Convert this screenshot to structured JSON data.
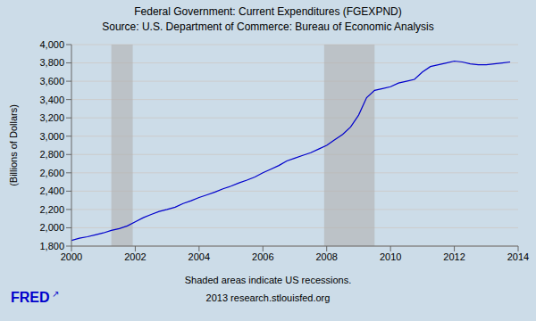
{
  "chart_data": {
    "type": "line",
    "title": "Federal Government: Current Expenditures (FGEXPND)",
    "subtitle": "Source: U.S. Department of Commerce: Bureau of Economic Analysis",
    "y_label": "(Billions of Dollars)",
    "annotations": [
      "Shaded areas indicate US recessions.",
      "2013 research.stlouisfed.org"
    ],
    "logo": [
      "FRED",
      "↗"
    ],
    "color": "#0000cc",
    "grid": true,
    "recessions": [
      {
        "start": 2001.25,
        "end": 2001.92,
        "color": "#b0b0b0"
      },
      {
        "start": 2007.92,
        "end": 2009.5,
        "color": "#b0b0b0"
      }
    ],
    "xlim": [
      2000,
      2014
    ],
    "xticks": [
      2000,
      2002,
      2004,
      2006,
      2008,
      2010,
      2012,
      2014
    ],
    "ylim": [
      1800,
      4000
    ],
    "yticks": [
      {
        "value": 1800,
        "label": "1,800"
      },
      {
        "value": 2000,
        "label": "2,000"
      },
      {
        "value": 2200,
        "label": "2,200"
      },
      {
        "value": 2400,
        "label": "2,400"
      },
      {
        "value": 2600,
        "label": "2,600"
      },
      {
        "value": 2800,
        "label": "2,800"
      },
      {
        "value": 3000,
        "label": "3,000"
      },
      {
        "value": 3200,
        "label": "3,200"
      },
      {
        "value": 3400,
        "label": "3,400"
      },
      {
        "value": 3600,
        "label": "3,600"
      },
      {
        "value": 3800,
        "label": "3,800"
      },
      {
        "value": 4000,
        "label": "4,000"
      }
    ],
    "x": [
      2000.0,
      2000.25,
      2000.5,
      2000.75,
      2001.0,
      2001.25,
      2001.5,
      2001.75,
      2002.0,
      2002.25,
      2002.5,
      2002.75,
      2003.0,
      2003.25,
      2003.5,
      2003.75,
      2004.0,
      2004.25,
      2004.5,
      2004.75,
      2005.0,
      2005.25,
      2005.5,
      2005.75,
      2006.0,
      2006.25,
      2006.5,
      2006.75,
      2007.0,
      2007.25,
      2007.5,
      2007.75,
      2008.0,
      2008.25,
      2008.5,
      2008.75,
      2009.0,
      2009.25,
      2009.5,
      2009.75,
      2010.0,
      2010.25,
      2010.5,
      2010.75,
      2011.0,
      2011.25,
      2011.5,
      2011.75,
      2012.0,
      2012.25,
      2012.5,
      2012.75,
      2013.0,
      2013.25,
      2013.5,
      2013.75
    ],
    "values": [
      1862,
      1886,
      1902,
      1923,
      1944,
      1971,
      1991,
      2020,
      2065,
      2110,
      2145,
      2178,
      2200,
      2225,
      2265,
      2295,
      2330,
      2360,
      2390,
      2425,
      2455,
      2490,
      2520,
      2555,
      2600,
      2640,
      2680,
      2730,
      2760,
      2790,
      2820,
      2860,
      2900,
      2960,
      3020,
      3100,
      3230,
      3420,
      3500,
      3520,
      3540,
      3580,
      3600,
      3620,
      3700,
      3760,
      3780,
      3800,
      3820,
      3810,
      3790,
      3780,
      3780,
      3790,
      3800,
      3810
    ]
  }
}
